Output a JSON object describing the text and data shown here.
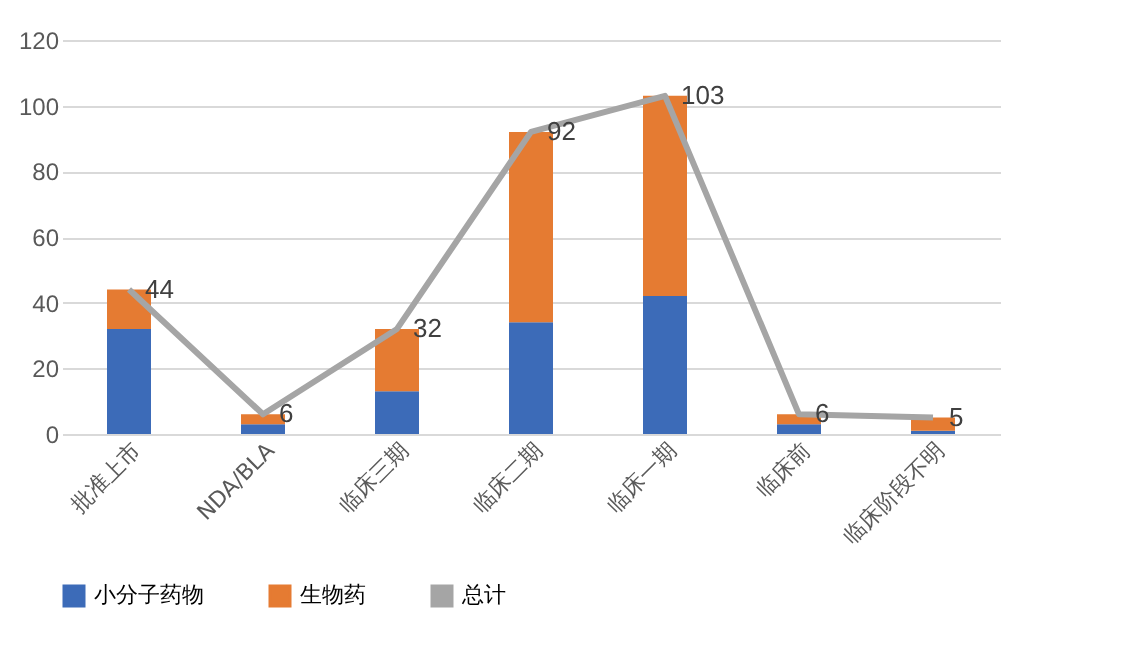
{
  "chart_data": {
    "type": "bar",
    "stacked": true,
    "categories": [
      "批准上市",
      "NDA/BLA",
      "临床三期",
      "临床二期",
      "临床一期",
      "临床前",
      "临床阶段不明"
    ],
    "series": [
      {
        "name": "小分子药物",
        "color": "#3c6bb8",
        "values": [
          32,
          3,
          13,
          34,
          42,
          3,
          1
        ]
      },
      {
        "name": "生物药",
        "color": "#e57b32",
        "values": [
          12,
          3,
          19,
          58,
          61,
          3,
          4
        ]
      },
      {
        "name": "总计",
        "type": "line",
        "color": "#a5a5a5",
        "values": [
          44,
          6,
          32,
          92,
          103,
          6,
          5
        ],
        "value_labels": [
          "44",
          "6",
          "32",
          "92",
          "103",
          "6",
          "5"
        ]
      }
    ],
    "ylim": [
      0,
      120
    ],
    "yticks": [
      0,
      20,
      40,
      60,
      80,
      100,
      120
    ],
    "grid": "y",
    "legend": "bottom",
    "marker": "none"
  }
}
